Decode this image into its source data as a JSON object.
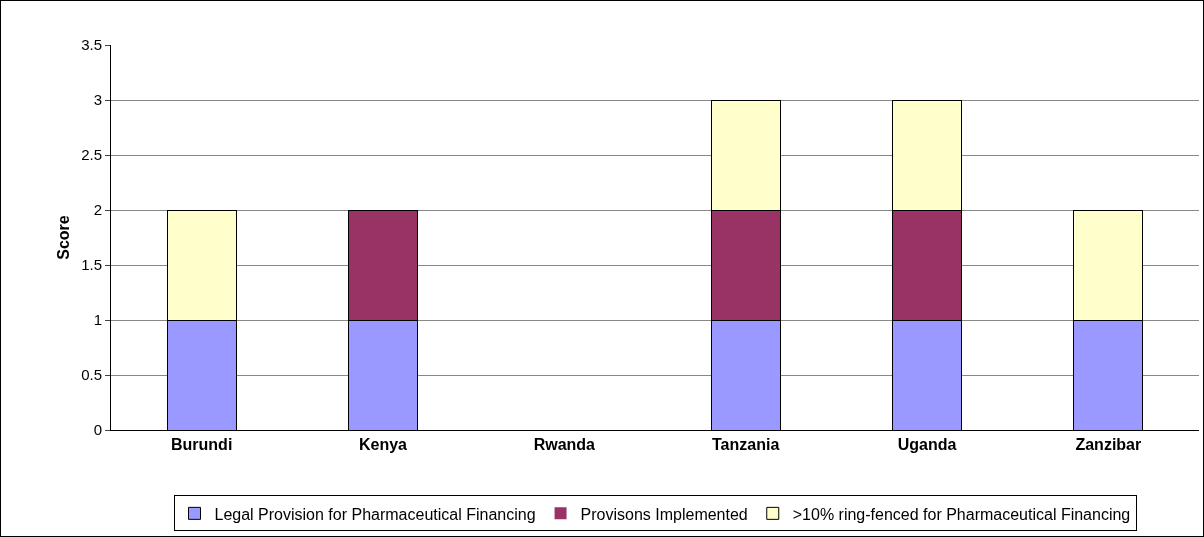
{
  "chart_data": {
    "type": "bar",
    "stacked": true,
    "ylabel": "Score",
    "categories": [
      "Burundi",
      "Kenya",
      "Rwanda",
      "Tanzania",
      "Uganda",
      "Zanzibar"
    ],
    "series": [
      {
        "name": "Legal Provision for Pharmaceutical Financing",
        "color": "#9999ff",
        "values": [
          1,
          1,
          0,
          1,
          1,
          1
        ]
      },
      {
        "name": "Provisons Implemented",
        "color": "#993366",
        "values": [
          0,
          1,
          0,
          1,
          1,
          0
        ]
      },
      {
        "name": ">10% ring-fenced for Pharmaceutical Financing",
        "color": "#ffffcc",
        "values": [
          1,
          0,
          0,
          1,
          1,
          1
        ]
      }
    ],
    "ylim": [
      0,
      3.5
    ],
    "yticks": [
      0,
      0.5,
      1,
      1.5,
      2,
      2.5,
      3,
      3.5
    ],
    "grid": "y",
    "legend": "bottom"
  }
}
